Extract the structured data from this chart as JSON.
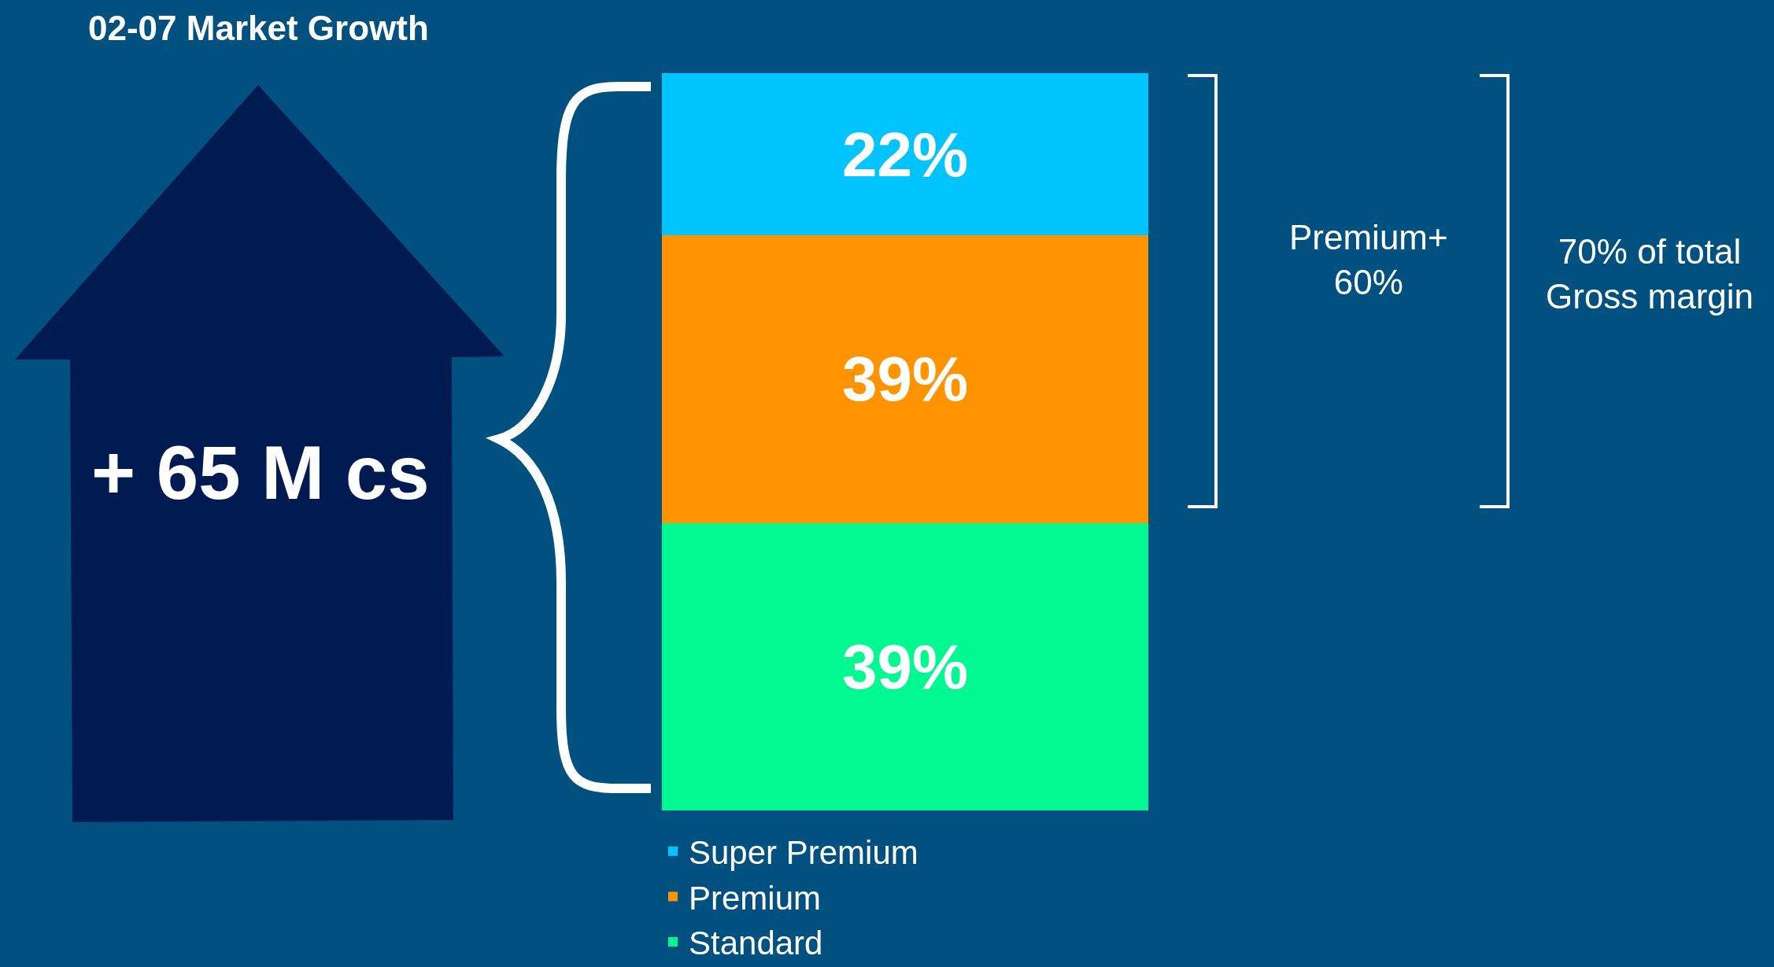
{
  "chart_data": {
    "type": "bar",
    "stacked": true,
    "title": "02-07 Market Growth",
    "categories": [
      null
    ],
    "series": [
      {
        "name": "Standard",
        "color": "#00f890",
        "values": [
          39
        ],
        "value_labels": [
          "39%"
        ]
      },
      {
        "name": "Premium",
        "color": "#ff9400",
        "values": [
          39
        ],
        "value_labels": [
          "39%"
        ]
      },
      {
        "name": "Super Premium",
        "color": "#00c4ff",
        "values": [
          22
        ],
        "value_labels": [
          "22%"
        ]
      }
    ],
    "legend": "bottom",
    "annotations": [
      "+ 65 M cs",
      "Premium+\n60%",
      "70% of total\nGross margin"
    ]
  }
}
